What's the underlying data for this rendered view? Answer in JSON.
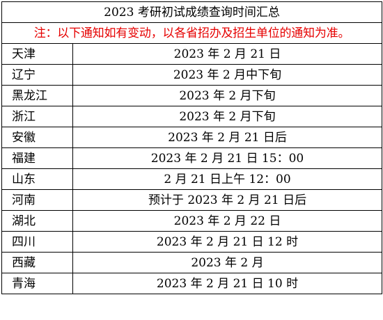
{
  "title": "2023 考研初试成绩查询时间汇总",
  "notice": "注：以下通知如有变动，以各省招办及招生单位的通知为准。",
  "notice_color": "#e60000",
  "rows": [
    {
      "province": "天津",
      "time": "2023 年 2 月 21 日"
    },
    {
      "province": "辽宁",
      "time": "2023 年 2 月中下旬"
    },
    {
      "province": "黑龙江",
      "time": "2023 年 2 月下旬"
    },
    {
      "province": "浙江",
      "time": "2023 年 2 月下旬"
    },
    {
      "province": "安徽",
      "time": "2023 年 2 月 21 日后"
    },
    {
      "province": "福建",
      "time": "2023 年 2 月 21 日 15：00"
    },
    {
      "province": "山东",
      "time": "2 月 21 日上午 12：00"
    },
    {
      "province": "河南",
      "time": "预计于 2023 年 2 月 21 日后"
    },
    {
      "province": "湖北",
      "time": "2023 年 2 月 22 日"
    },
    {
      "province": "四川",
      "time": "2023 年 2 月 21 日 12 时"
    },
    {
      "province": "西藏",
      "time": "2023 年 2 月"
    },
    {
      "province": "青海",
      "time": "2023 年 2 月 21 日 10 时"
    }
  ]
}
